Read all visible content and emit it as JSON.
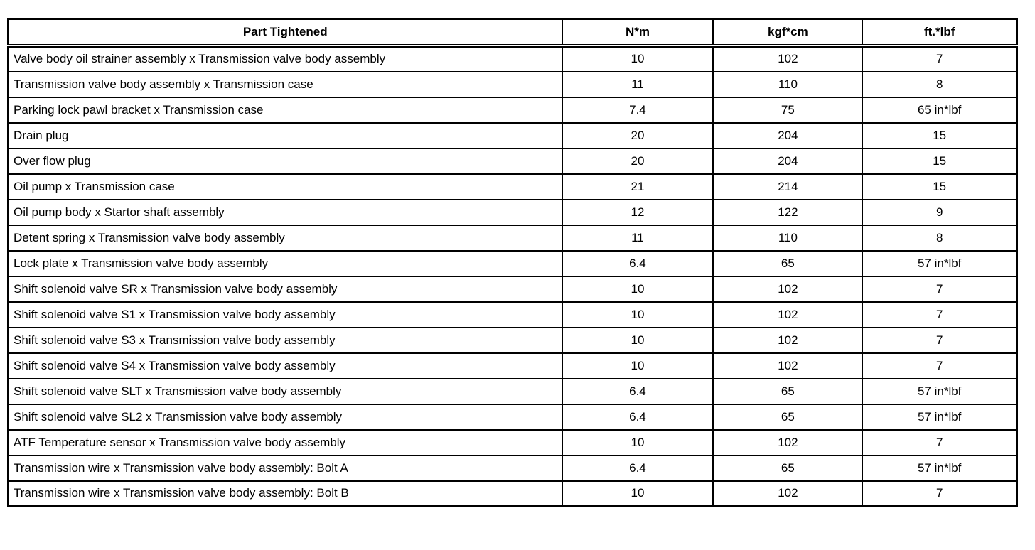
{
  "table": {
    "columns": [
      "Part Tightened",
      "N*m",
      "kgf*cm",
      "ft.*lbf"
    ],
    "rows": [
      [
        "Valve body oil strainer assembly x Transmission valve body assembly",
        "10",
        "102",
        "7"
      ],
      [
        "Transmission valve body assembly x Transmission case",
        "11",
        "110",
        "8"
      ],
      [
        "Parking lock pawl bracket x Transmission case",
        "7.4",
        "75",
        "65 in*lbf"
      ],
      [
        "Drain plug",
        "20",
        "204",
        "15"
      ],
      [
        "Over flow plug",
        "20",
        "204",
        "15"
      ],
      [
        "Oil pump x Transmission case",
        "21",
        "214",
        "15"
      ],
      [
        "Oil pump body x Startor shaft assembly",
        "12",
        "122",
        "9"
      ],
      [
        "Detent spring x Transmission valve body assembly",
        "11",
        "110",
        "8"
      ],
      [
        "Lock plate x Transmission valve body assembly",
        "6.4",
        "65",
        "57 in*lbf"
      ],
      [
        "Shift solenoid valve SR x Transmission valve body assembly",
        "10",
        "102",
        "7"
      ],
      [
        "Shift solenoid valve S1 x Transmission valve body assembly",
        "10",
        "102",
        "7"
      ],
      [
        "Shift solenoid valve S3 x Transmission valve body assembly",
        "10",
        "102",
        "7"
      ],
      [
        "Shift solenoid valve S4 x Transmission valve body assembly",
        "10",
        "102",
        "7"
      ],
      [
        "Shift solenoid valve SLT x Transmission valve body assembly",
        "6.4",
        "65",
        "57 in*lbf"
      ],
      [
        "Shift solenoid valve SL2 x Transmission valve body assembly",
        "6.4",
        "65",
        "57 in*lbf"
      ],
      [
        "ATF Temperature sensor x Transmission valve body assembly",
        "10",
        "102",
        "7"
      ],
      [
        "Transmission wire x Transmission valve body assembly: Bolt A",
        "6.4",
        "65",
        "57 in*lbf"
      ],
      [
        "Transmission wire x Transmission valve body assembly: Bolt B",
        "10",
        "102",
        "7"
      ]
    ]
  }
}
